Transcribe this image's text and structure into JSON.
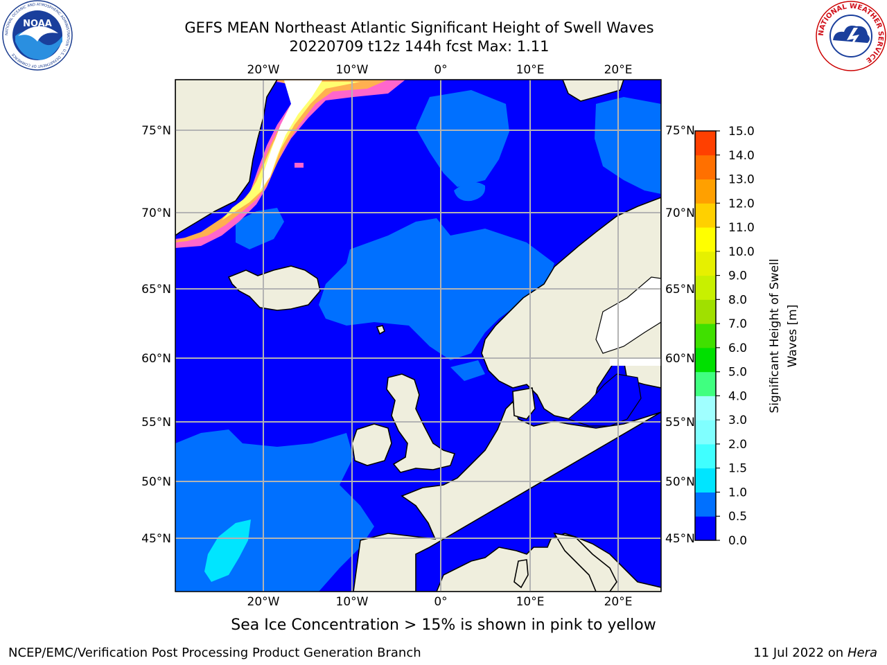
{
  "header": {
    "title_line1": "GEFS MEAN Northeast Atlantic Significant Height of Swell Waves",
    "title_line2": "20220709 t12z 144h fcst   Max: 1.11"
  },
  "map": {
    "lon_labels": [
      "20°W",
      "10°W",
      "0°",
      "10°E",
      "20°E"
    ],
    "lat_labels": [
      "75°N",
      "70°N",
      "65°N",
      "60°N",
      "55°N",
      "50°N",
      "45°N"
    ]
  },
  "colorbar": {
    "label_line1": "Significant Height of Swell",
    "label_line2": "Waves [m]",
    "ticks": [
      "0.0",
      "0.5",
      "1.0",
      "1.5",
      "2.0",
      "3.0",
      "4.0",
      "5.0",
      "6.0",
      "7.0",
      "8.0",
      "9.0",
      "10.0",
      "11.0",
      "12.0",
      "13.0",
      "14.0",
      "15.0"
    ],
    "colors": [
      "#0000ff",
      "#0070ff",
      "#00e5ff",
      "#40ffff",
      "#80ffff",
      "#a0ffff",
      "#40ff80",
      "#00e000",
      "#40e000",
      "#a0e000",
      "#c8f000",
      "#e6f000",
      "#ffff00",
      "#ffd000",
      "#ffa000",
      "#ff7000",
      "#ff4000",
      "#ff0000"
    ]
  },
  "note": "Sea Ice Concentration > 15% is shown in pink to yellow",
  "footer": {
    "left": "NCEP/EMC/Verification Post Processing Product Generation Branch",
    "date": "11 Jul 2022 on",
    "machine": "Hera"
  },
  "logos": {
    "left": "NOAA",
    "right_ring": "NATIONAL WEATHER SERVICE",
    "left_ring": "NATIONAL OCEANIC AND ATMOSPHERIC ADMINISTRATION · U.S. DEPARTMENT OF COMMERCE"
  }
}
